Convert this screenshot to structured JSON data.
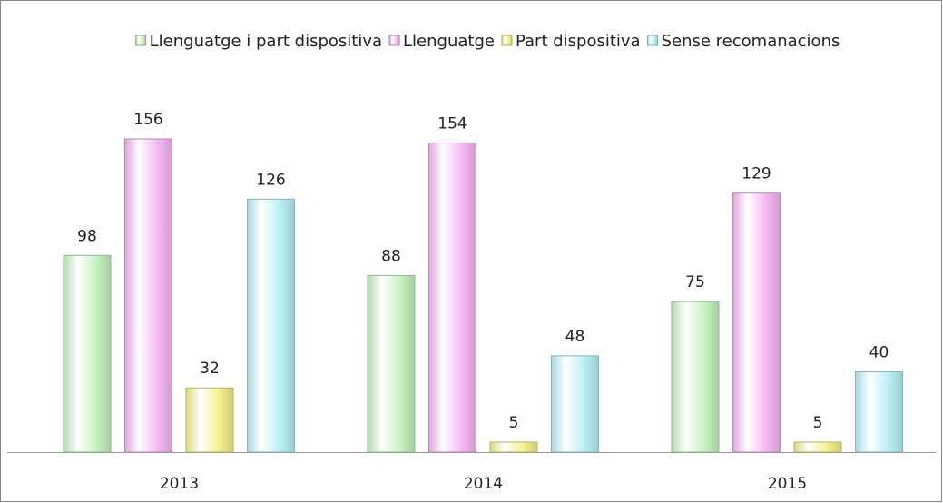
{
  "chart_data": {
    "type": "bar",
    "categories": [
      "2013",
      "2014",
      "2015"
    ],
    "series": [
      {
        "name": "Llenguatge i part dispositiva",
        "color": "#c6f2c0",
        "values": [
          98,
          88,
          75
        ]
      },
      {
        "name": "Llenguatge",
        "color": "#f5b8f3",
        "values": [
          156,
          154,
          129
        ]
      },
      {
        "name": "Part dispositiva",
        "color": "#f4f08c",
        "values": [
          32,
          5,
          5
        ]
      },
      {
        "name": "Sense recomanacions",
        "color": "#b8f0f5",
        "values": [
          126,
          48,
          40
        ]
      }
    ],
    "legend": "top"
  }
}
